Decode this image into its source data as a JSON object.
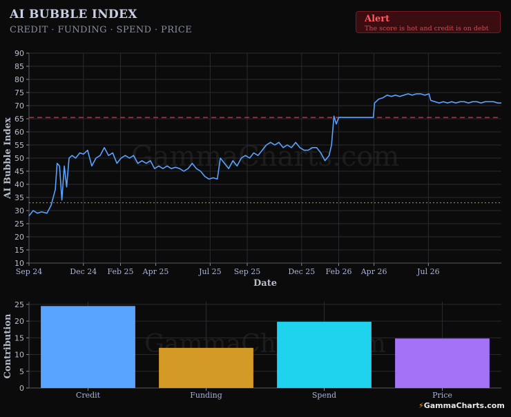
{
  "header": {
    "title": "AI BUBBLE INDEX",
    "subtitle": "CREDIT · FUNDING · SPEND · PRICE"
  },
  "alert": {
    "title": "Alert",
    "message": "The score is hot and credit is on debt"
  },
  "watermark": "GammaCharts.com",
  "logo": "GammaCharts.com",
  "chart_data": [
    {
      "type": "line",
      "xlabel": "Date",
      "ylabel": "AI Bubble Index",
      "ylim": [
        10,
        90
      ],
      "yticks": [
        10,
        15,
        20,
        25,
        30,
        35,
        40,
        45,
        50,
        55,
        60,
        65,
        70,
        75,
        80,
        85,
        90
      ],
      "xlim": [
        "2024-09-01",
        "2026-10-31"
      ],
      "xticks": [
        {
          "date": "2024-09-01",
          "label": "Sep 24"
        },
        {
          "date": "2024-12-01",
          "label": "Dec 24"
        },
        {
          "date": "2025-02-01",
          "label": "Feb 25"
        },
        {
          "date": "2025-04-01",
          "label": "Apr 25"
        },
        {
          "date": "2025-07-01",
          "label": "Jul 25"
        },
        {
          "date": "2025-09-01",
          "label": "Sep 25"
        },
        {
          "date": "2025-12-01",
          "label": "Dec 25"
        },
        {
          "date": "2026-02-01",
          "label": "Feb 26"
        },
        {
          "date": "2026-04-01",
          "label": "Apr 26"
        },
        {
          "date": "2026-07-01",
          "label": "Jul 26"
        }
      ],
      "grid": true,
      "reference_lines": [
        {
          "value": 65.5,
          "style": "dashed",
          "color": "#c0464c"
        },
        {
          "value": 33,
          "style": "dotted",
          "color": "#b07a2a"
        }
      ],
      "series": [
        {
          "color": "#5aa3ff",
          "points": [
            [
              "2024-09-01",
              28
            ],
            [
              "2024-09-08",
              30
            ],
            [
              "2024-09-15",
              29
            ],
            [
              "2024-09-22",
              29.5
            ],
            [
              "2024-10-01",
              29
            ],
            [
              "2024-10-08",
              32
            ],
            [
              "2024-10-15",
              38
            ],
            [
              "2024-10-18",
              48
            ],
            [
              "2024-10-22",
              47
            ],
            [
              "2024-10-26",
              34
            ],
            [
              "2024-10-30",
              47
            ],
            [
              "2024-11-03",
              39
            ],
            [
              "2024-11-07",
              50
            ],
            [
              "2024-11-12",
              51
            ],
            [
              "2024-11-18",
              50
            ],
            [
              "2024-11-25",
              52
            ],
            [
              "2024-12-01",
              51.5
            ],
            [
              "2024-12-08",
              53
            ],
            [
              "2024-12-15",
              47
            ],
            [
              "2024-12-22",
              50
            ],
            [
              "2024-12-29",
              51
            ],
            [
              "2025-01-05",
              54
            ],
            [
              "2025-01-12",
              51
            ],
            [
              "2025-01-19",
              52
            ],
            [
              "2025-01-26",
              48
            ],
            [
              "2025-02-02",
              50
            ],
            [
              "2025-02-09",
              51
            ],
            [
              "2025-02-16",
              50
            ],
            [
              "2025-02-23",
              51
            ],
            [
              "2025-03-02",
              48
            ],
            [
              "2025-03-09",
              49
            ],
            [
              "2025-03-16",
              48
            ],
            [
              "2025-03-23",
              49
            ],
            [
              "2025-03-30",
              46
            ],
            [
              "2025-04-06",
              47
            ],
            [
              "2025-04-13",
              46
            ],
            [
              "2025-04-20",
              47
            ],
            [
              "2025-04-27",
              46
            ],
            [
              "2025-05-04",
              46.5
            ],
            [
              "2025-05-11",
              46
            ],
            [
              "2025-05-18",
              45
            ],
            [
              "2025-05-25",
              46
            ],
            [
              "2025-06-01",
              48
            ],
            [
              "2025-06-08",
              46
            ],
            [
              "2025-06-15",
              45
            ],
            [
              "2025-06-22",
              43
            ],
            [
              "2025-06-29",
              42
            ],
            [
              "2025-07-06",
              42.5
            ],
            [
              "2025-07-13",
              42
            ],
            [
              "2025-07-18",
              50
            ],
            [
              "2025-07-25",
              48
            ],
            [
              "2025-08-01",
              46
            ],
            [
              "2025-08-08",
              49
            ],
            [
              "2025-08-15",
              47
            ],
            [
              "2025-08-22",
              50
            ],
            [
              "2025-08-29",
              51
            ],
            [
              "2025-09-05",
              50
            ],
            [
              "2025-09-12",
              52
            ],
            [
              "2025-09-19",
              51
            ],
            [
              "2025-09-26",
              53
            ],
            [
              "2025-10-03",
              55
            ],
            [
              "2025-10-10",
              56
            ],
            [
              "2025-10-17",
              55
            ],
            [
              "2025-10-24",
              56
            ],
            [
              "2025-10-31",
              54
            ],
            [
              "2025-11-07",
              55
            ],
            [
              "2025-11-14",
              54
            ],
            [
              "2025-11-21",
              56
            ],
            [
              "2025-11-28",
              54
            ],
            [
              "2025-12-05",
              53
            ],
            [
              "2025-12-12",
              53
            ],
            [
              "2025-12-19",
              54
            ],
            [
              "2025-12-26",
              54
            ],
            [
              "2026-01-02",
              52
            ],
            [
              "2026-01-09",
              49
            ],
            [
              "2026-01-16",
              51
            ],
            [
              "2026-01-20",
              55
            ],
            [
              "2026-01-24",
              66
            ],
            [
              "2026-01-28",
              63
            ],
            [
              "2026-02-01",
              65.5
            ],
            [
              "2026-03-01",
              65.5
            ],
            [
              "2026-03-31",
              65.5
            ],
            [
              "2026-04-02",
              71
            ],
            [
              "2026-04-09",
              72.5
            ],
            [
              "2026-04-16",
              73
            ],
            [
              "2026-04-23",
              74
            ],
            [
              "2026-04-30",
              73.5
            ],
            [
              "2026-05-07",
              74
            ],
            [
              "2026-05-14",
              73.5
            ],
            [
              "2026-05-21",
              74
            ],
            [
              "2026-05-28",
              74.5
            ],
            [
              "2026-06-04",
              74
            ],
            [
              "2026-06-11",
              74.5
            ],
            [
              "2026-06-18",
              74.5
            ],
            [
              "2026-06-25",
              74
            ],
            [
              "2026-07-02",
              74.5
            ],
            [
              "2026-07-05",
              72
            ],
            [
              "2026-07-12",
              71.5
            ],
            [
              "2026-07-19",
              71
            ],
            [
              "2026-07-26",
              71.5
            ],
            [
              "2026-08-02",
              71
            ],
            [
              "2026-08-09",
              71.5
            ],
            [
              "2026-08-16",
              71
            ],
            [
              "2026-08-23",
              71.5
            ],
            [
              "2026-08-30",
              71.5
            ],
            [
              "2026-09-06",
              71
            ],
            [
              "2026-09-13",
              71.5
            ],
            [
              "2026-09-20",
              71.5
            ],
            [
              "2026-09-27",
              71
            ],
            [
              "2026-10-04",
              71.5
            ],
            [
              "2026-10-11",
              71.5
            ],
            [
              "2026-10-18",
              71.5
            ],
            [
              "2026-10-25",
              71
            ],
            [
              "2026-10-31",
              71
            ]
          ]
        }
      ]
    },
    {
      "type": "bar",
      "ylabel": "Contribution",
      "ylim": [
        0,
        25.8
      ],
      "yticks": [
        0,
        5,
        10,
        15,
        20,
        25
      ],
      "categories": [
        "Credit",
        "Funding",
        "Spend",
        "Price"
      ],
      "values": [
        24.5,
        12,
        19.8,
        14.8
      ],
      "colors": [
        "#58a4ff",
        "#d49a26",
        "#1fd3ef",
        "#a473f5"
      ],
      "grid": true
    }
  ]
}
